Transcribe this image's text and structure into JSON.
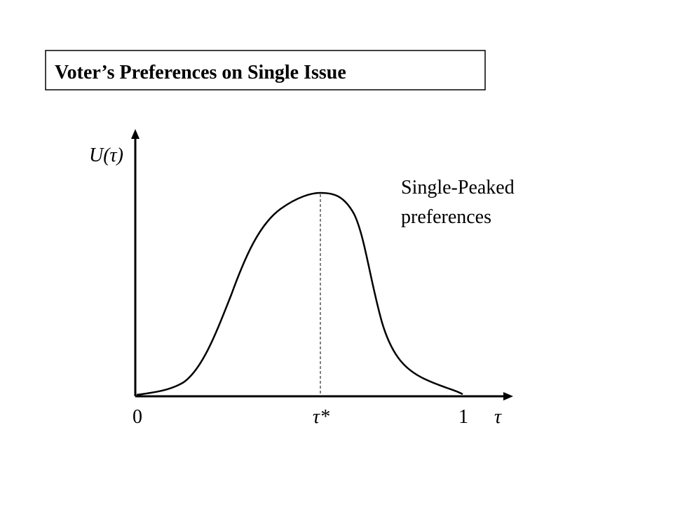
{
  "header": {
    "title": "Voter’s Preferences on Single Issue"
  },
  "axes": {
    "y_label": "U(τ)",
    "x_labels": [
      "0",
      "τ*",
      "1"
    ],
    "x_label": "τ"
  },
  "annotation": {
    "lines": [
      "Single-Peaked",
      "preferences"
    ]
  }
}
